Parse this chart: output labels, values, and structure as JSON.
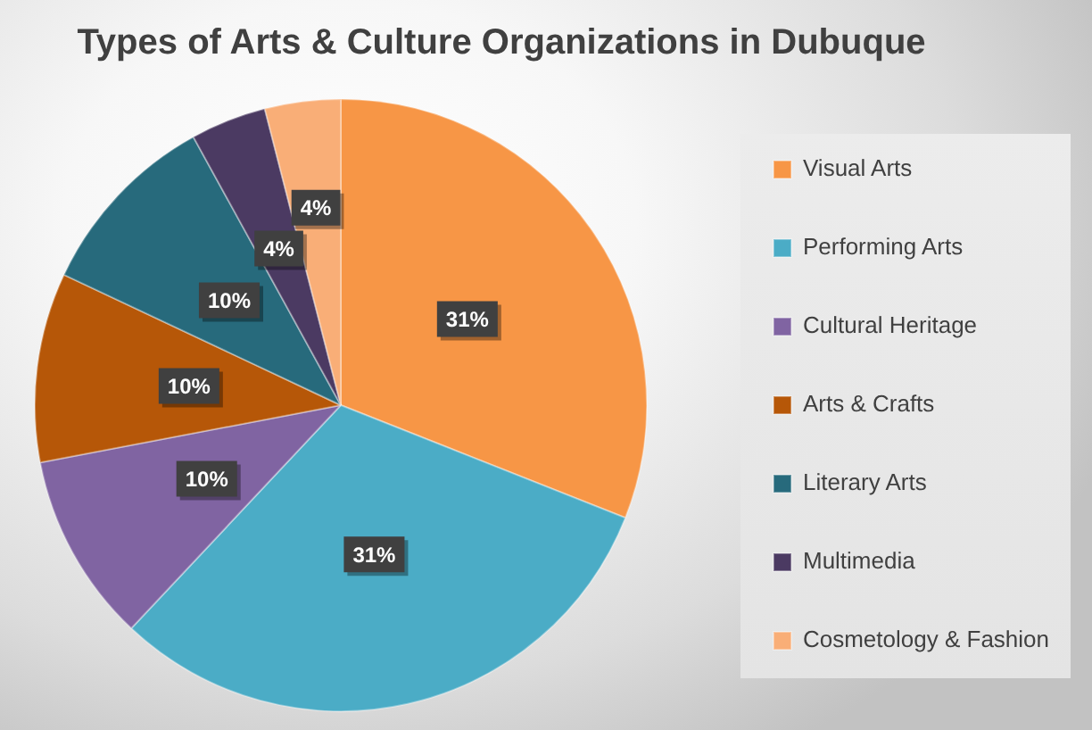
{
  "chart_data": {
    "type": "pie",
    "title": "Types of Arts & Culture Organizations in Dubuque",
    "categories": [
      "Visual Arts",
      "Performing Arts",
      "Cultural Heritage",
      "Arts & Crafts",
      "Literary Arts",
      "Multimedia",
      "Cosmetology & Fashion"
    ],
    "values": [
      31,
      31,
      10,
      10,
      10,
      4,
      4
    ],
    "colors": [
      "#f79646",
      "#4bacc6",
      "#8064a2",
      "#b65708",
      "#276a7c",
      "#4b3a62",
      "#f9ae77"
    ],
    "value_labels": [
      "31%",
      "31%",
      "10%",
      "10%",
      "10%",
      "4%",
      "4%"
    ],
    "legend": "right"
  }
}
